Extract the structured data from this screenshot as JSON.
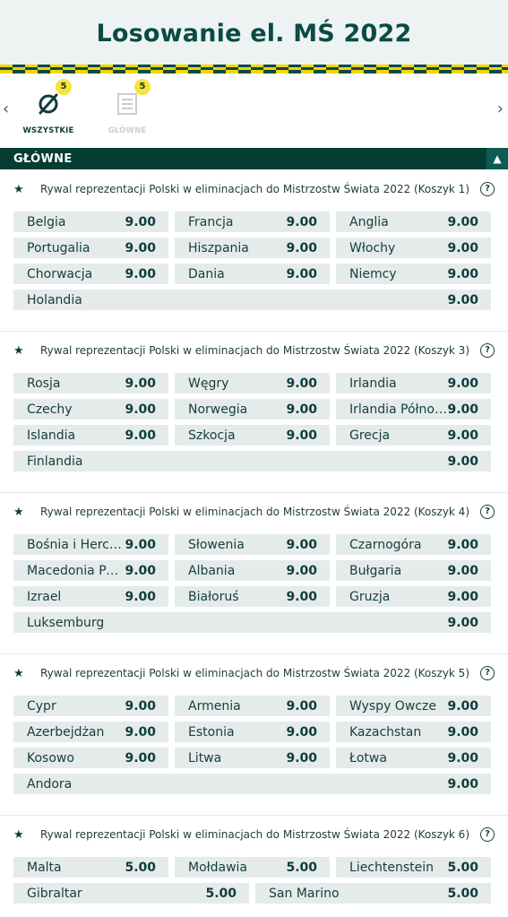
{
  "header": {
    "title": "Losowanie el. MŚ 2022"
  },
  "tabs": [
    {
      "label": "WSZYSTKIE",
      "count": "5",
      "icon": "no-filter-icon",
      "active": true
    },
    {
      "label": "GŁÓWNE",
      "count": "5",
      "icon": "list-icon",
      "active": false
    }
  ],
  "section": {
    "title": "GŁÓWNE"
  },
  "markets": [
    {
      "title": "Rywal reprezentacji Polski w eliminacjach do Mistrzostw Świata 2022 (Koszyk 1)",
      "odds": [
        {
          "name": "Belgia",
          "price": "9.00"
        },
        {
          "name": "Francja",
          "price": "9.00"
        },
        {
          "name": "Anglia",
          "price": "9.00"
        },
        {
          "name": "Portugalia",
          "price": "9.00"
        },
        {
          "name": "Hiszpania",
          "price": "9.00"
        },
        {
          "name": "Włochy",
          "price": "9.00"
        },
        {
          "name": "Chorwacja",
          "price": "9.00"
        },
        {
          "name": "Dania",
          "price": "9.00"
        },
        {
          "name": "Niemcy",
          "price": "9.00"
        },
        {
          "name": "Holandia",
          "price": "9.00"
        }
      ]
    },
    {
      "title": "Rywal reprezentacji Polski w eliminacjach do Mistrzostw Świata 2022 (Koszyk 3)",
      "odds": [
        {
          "name": "Rosja",
          "price": "9.00"
        },
        {
          "name": "Węgry",
          "price": "9.00"
        },
        {
          "name": "Irlandia",
          "price": "9.00"
        },
        {
          "name": "Czechy",
          "price": "9.00"
        },
        {
          "name": "Norwegia",
          "price": "9.00"
        },
        {
          "name": "Irlandia Północna",
          "price": "9.00"
        },
        {
          "name": "Islandia",
          "price": "9.00"
        },
        {
          "name": "Szkocja",
          "price": "9.00"
        },
        {
          "name": "Grecja",
          "price": "9.00"
        },
        {
          "name": "Finlandia",
          "price": "9.00"
        }
      ]
    },
    {
      "title": "Rywal reprezentacji Polski w eliminacjach do Mistrzostw Świata 2022 (Koszyk 4)",
      "odds": [
        {
          "name": "Bośnia i Hercegowina",
          "price": "9.00"
        },
        {
          "name": "Słowenia",
          "price": "9.00"
        },
        {
          "name": "Czarnogóra",
          "price": "9.00"
        },
        {
          "name": "Macedonia Północna",
          "price": "9.00"
        },
        {
          "name": "Albania",
          "price": "9.00"
        },
        {
          "name": "Bułgaria",
          "price": "9.00"
        },
        {
          "name": "Izrael",
          "price": "9.00"
        },
        {
          "name": "Białoruś",
          "price": "9.00"
        },
        {
          "name": "Gruzja",
          "price": "9.00"
        },
        {
          "name": "Luksemburg",
          "price": "9.00"
        }
      ]
    },
    {
      "title": "Rywal reprezentacji Polski w eliminacjach do Mistrzostw Świata 2022 (Koszyk 5)",
      "odds": [
        {
          "name": "Cypr",
          "price": "9.00"
        },
        {
          "name": "Armenia",
          "price": "9.00"
        },
        {
          "name": "Wyspy Owcze",
          "price": "9.00"
        },
        {
          "name": "Azerbejdżan",
          "price": "9.00"
        },
        {
          "name": "Estonia",
          "price": "9.00"
        },
        {
          "name": "Kazachstan",
          "price": "9.00"
        },
        {
          "name": "Kosowo",
          "price": "9.00"
        },
        {
          "name": "Litwa",
          "price": "9.00"
        },
        {
          "name": "Łotwa",
          "price": "9.00"
        },
        {
          "name": "Andora",
          "price": "9.00"
        }
      ]
    },
    {
      "title": "Rywal reprezentacji Polski w eliminacjach do Mistrzostw Świata 2022 (Koszyk 6)",
      "odds": [
        {
          "name": "Malta",
          "price": "5.00"
        },
        {
          "name": "Mołdawia",
          "price": "5.00"
        },
        {
          "name": "Liechtenstein",
          "price": "5.00"
        },
        {
          "name": "Gibraltar",
          "price": "5.00"
        },
        {
          "name": "San Marino",
          "price": "5.00"
        }
      ]
    }
  ]
}
